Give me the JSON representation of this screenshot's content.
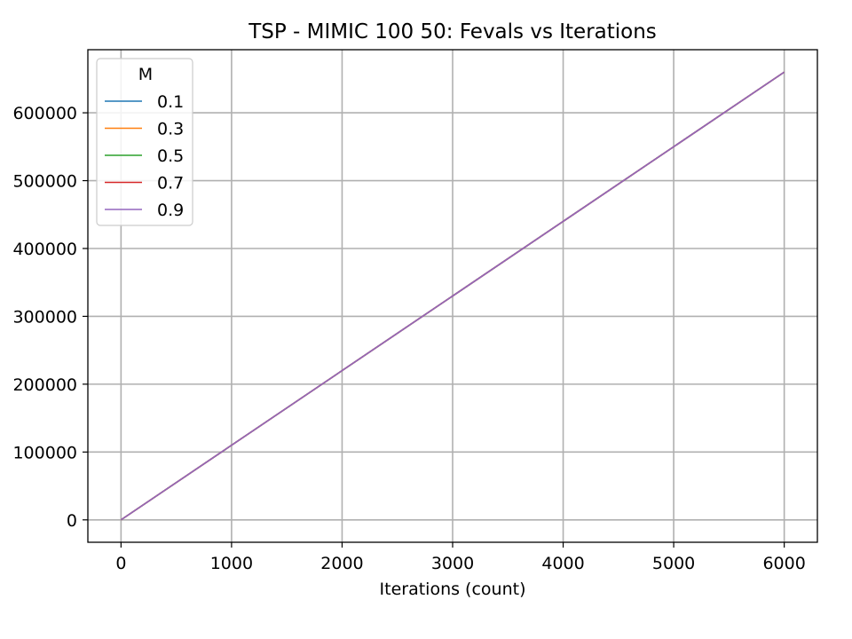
{
  "chart_data": {
    "type": "line",
    "title": "TSP - MIMIC 100 50: Fevals vs Iterations",
    "xlabel": "Iterations (count)",
    "ylabel": "",
    "xlim": [
      -300,
      6300
    ],
    "ylim": [
      -33000,
      693000
    ],
    "xticks": [
      0,
      1000,
      2000,
      3000,
      4000,
      5000,
      6000
    ],
    "yticks": [
      0,
      100000,
      200000,
      300000,
      400000,
      500000,
      600000
    ],
    "grid": true,
    "legend": {
      "title": "M",
      "placement": "top-left"
    },
    "series": [
      {
        "name": "0.1",
        "color": "#1f77b4",
        "x": [
          0,
          6000
        ],
        "y": [
          0,
          660000
        ]
      },
      {
        "name": "0.3",
        "color": "#ff7f0e",
        "x": [
          0,
          6000
        ],
        "y": [
          0,
          660000
        ]
      },
      {
        "name": "0.5",
        "color": "#2ca02c",
        "x": [
          0,
          6000
        ],
        "y": [
          0,
          660000
        ]
      },
      {
        "name": "0.7",
        "color": "#d62728",
        "x": [
          0,
          6000
        ],
        "y": [
          0,
          660000
        ]
      },
      {
        "name": "0.9",
        "color": "#9467bd",
        "x": [
          0,
          6000
        ],
        "y": [
          0,
          660000
        ]
      }
    ]
  }
}
